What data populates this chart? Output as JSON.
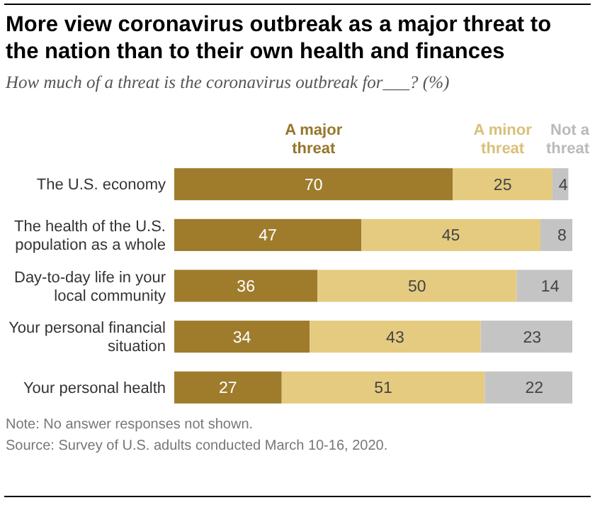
{
  "chart_data": {
    "type": "bar",
    "orientation": "horizontal",
    "stacked": true,
    "data_labels": true,
    "legend": "top",
    "title": "More view coronavirus outbreak as a major threat to the nation than to their own health and finances",
    "subtitle": "How much of a threat is the coronavirus outbreak for___? (%)",
    "categories": [
      "The U.S. economy",
      "The health of the U.S. population as a whole",
      "Day-to-day life in your local community",
      "Your personal financial situation",
      "Your personal health"
    ],
    "series": [
      {
        "name": "A major threat",
        "color": "#9e7c2c",
        "values": [
          70,
          47,
          36,
          34,
          27
        ]
      },
      {
        "name": "A minor threat",
        "color": "#e5cb80",
        "values": [
          25,
          45,
          50,
          43,
          51
        ]
      },
      {
        "name": "Not a threat",
        "color": "#c4c4c4",
        "values": [
          4,
          8,
          14,
          23,
          22
        ]
      }
    ],
    "annotations": [
      "Note: No answer responses not shown.",
      "Source: Survey of U.S. adults conducted March 10-16, 2020."
    ]
  }
}
